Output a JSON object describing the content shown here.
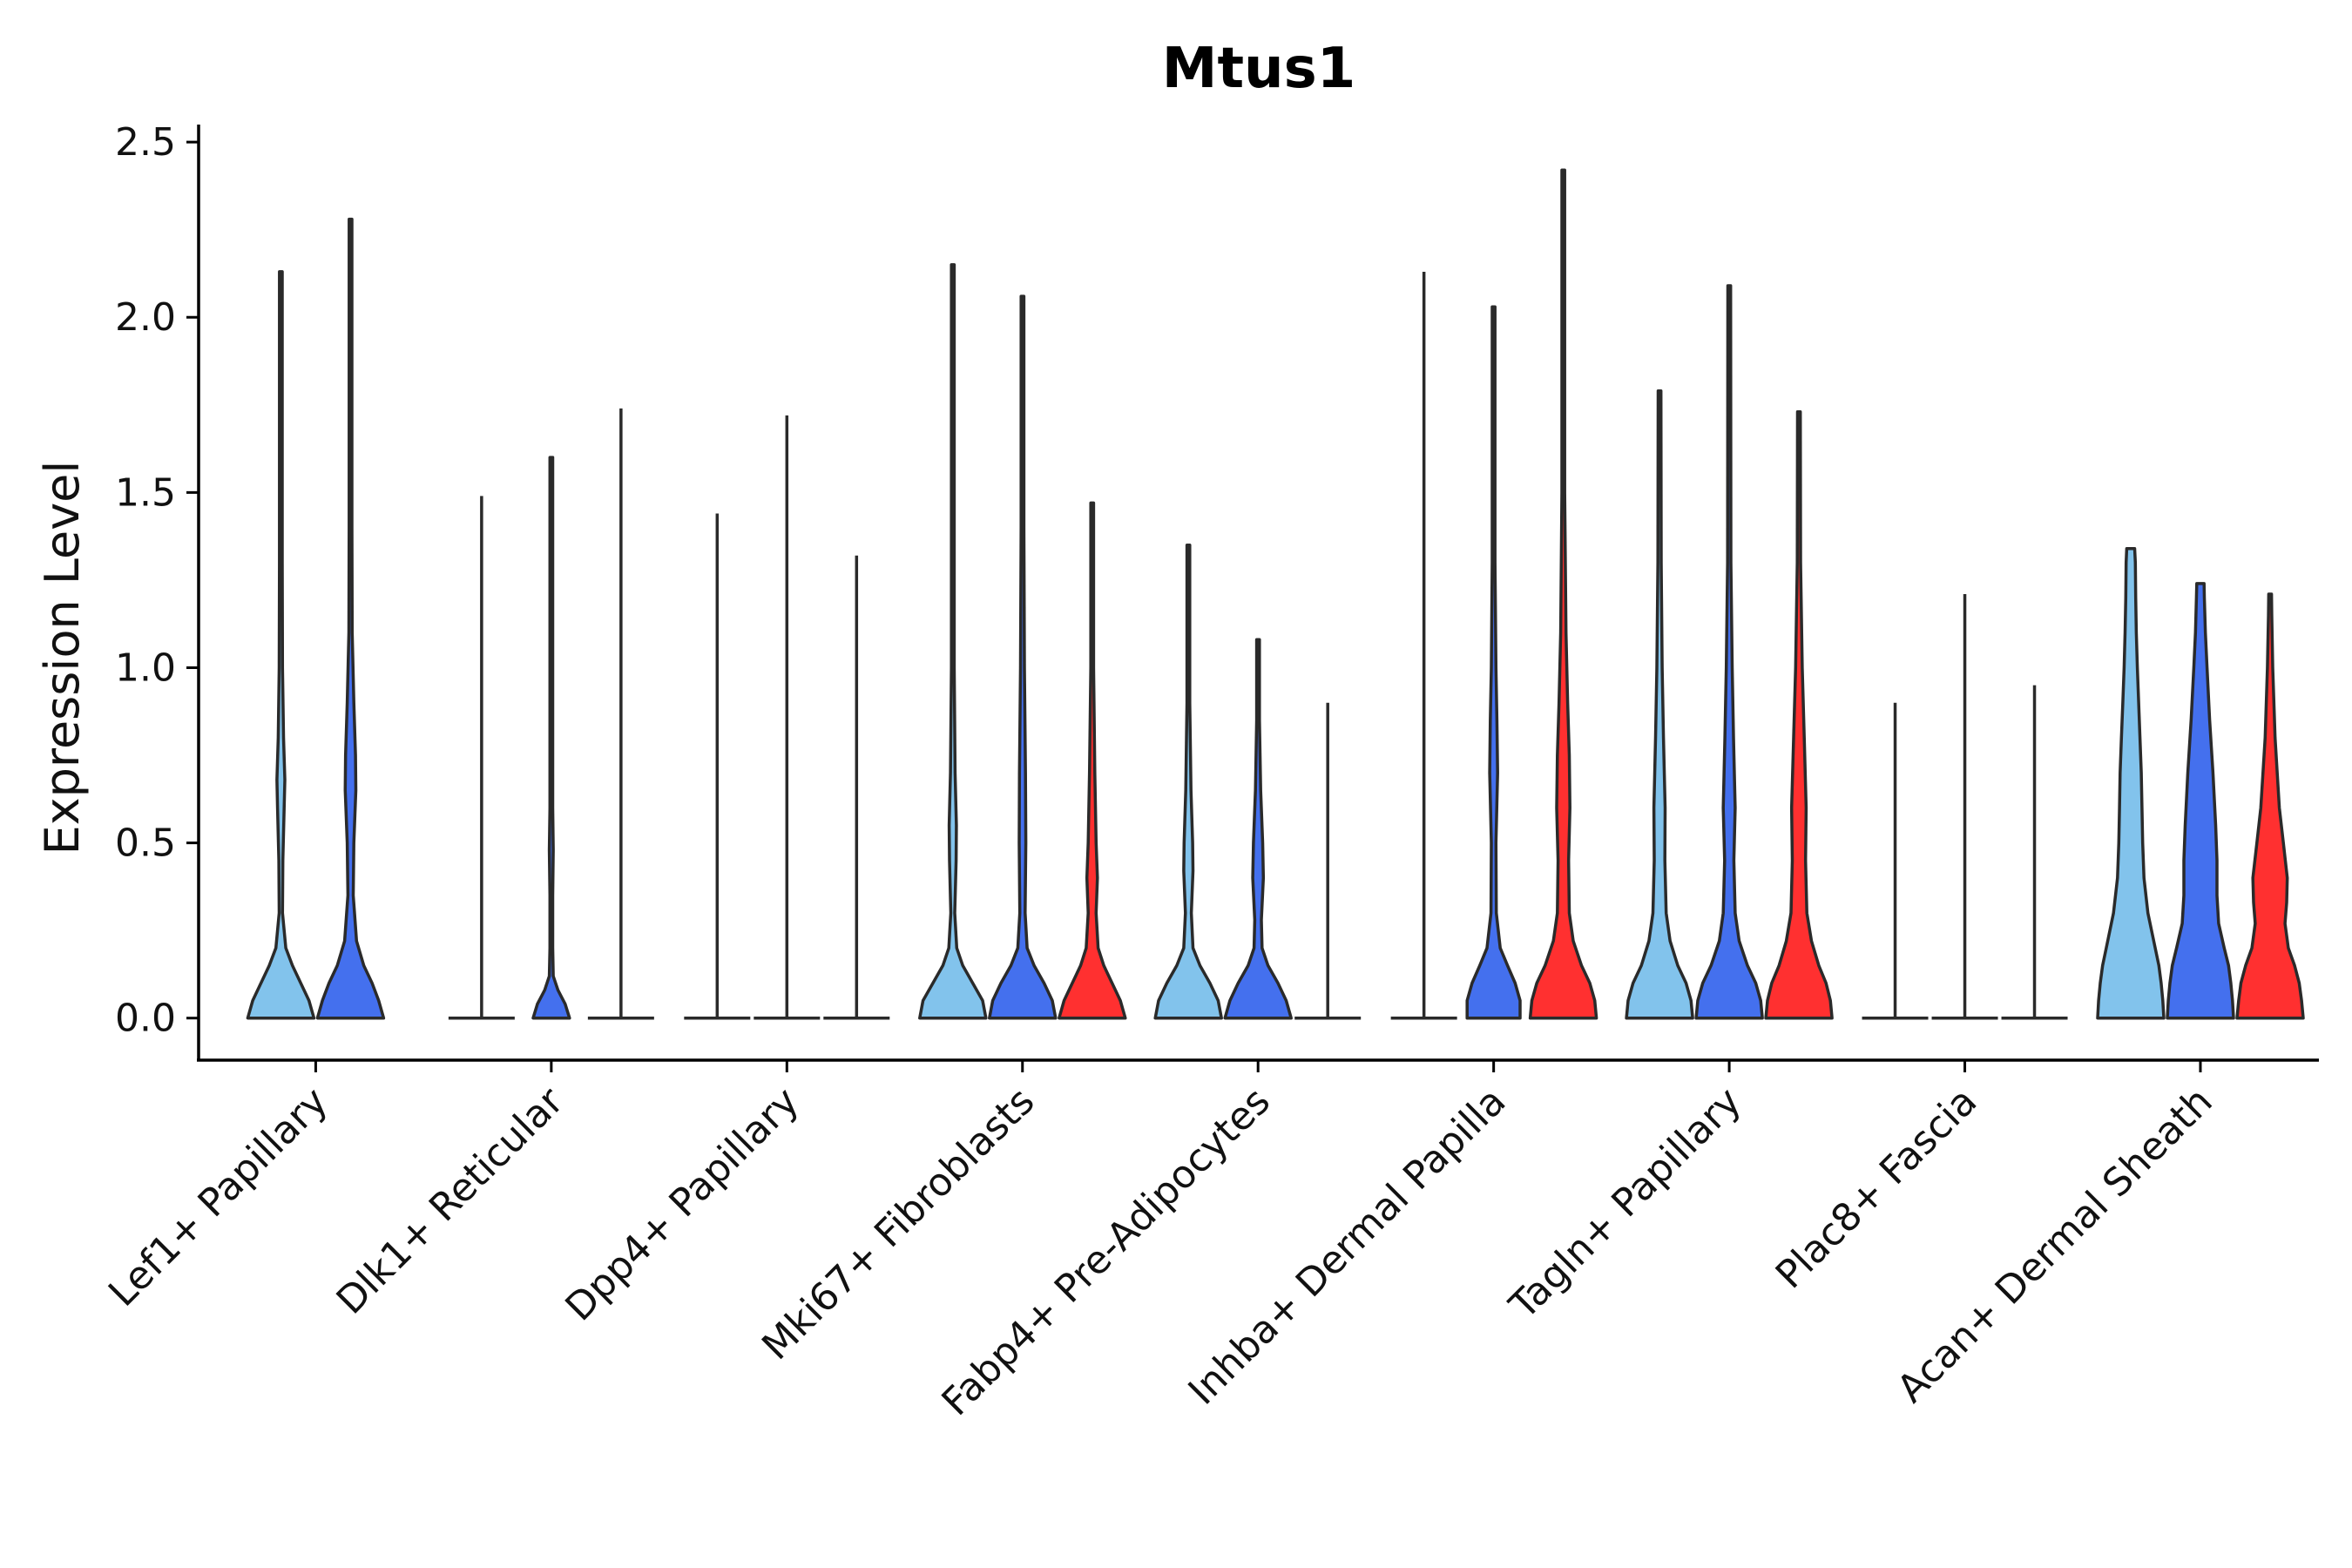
{
  "chart_data": {
    "type": "violin",
    "title": "Mtus1",
    "xlabel": "",
    "ylabel": "Expression Level",
    "ylim": [
      -0.12,
      2.55
    ],
    "yticks": [
      0.0,
      0.5,
      1.0,
      1.5,
      2.0,
      2.5
    ],
    "ytick_labels": [
      "0.0",
      "0.5",
      "1.0",
      "1.5",
      "2.0",
      "2.5"
    ],
    "legend": "none",
    "grid": false,
    "colors": {
      "lightblue": "#82C3EC",
      "blue": "#4470EE",
      "red": "#FF3030"
    },
    "categories": [
      "Lef1+ Papillary",
      "Dlk1+ Reticular",
      "Dpp4+ Papillary",
      "Mki67+ Fibroblasts",
      "Fabp4+ Pre-Adipocytes",
      "Inhba+ Dermal Papilla",
      "Tagln+ Papillary",
      "Plac8+ Fascia",
      "Acan+ Dermal Sheath"
    ],
    "violins": [
      {
        "category": 0,
        "sub": 0,
        "subs": 2,
        "color": "lightblue",
        "max": 2.13,
        "profile": [
          [
            0,
            1
          ],
          [
            0.05,
            0.85
          ],
          [
            0.1,
            0.6
          ],
          [
            0.15,
            0.35
          ],
          [
            0.2,
            0.15
          ],
          [
            0.3,
            0.05
          ],
          [
            0.45,
            0.06
          ],
          [
            0.6,
            0.1
          ],
          [
            0.68,
            0.12
          ],
          [
            0.8,
            0.08
          ],
          [
            1.0,
            0.05
          ],
          [
            1.3,
            0.02
          ],
          [
            1.6,
            0.012
          ],
          [
            2.13,
            0.006
          ]
        ]
      },
      {
        "category": 0,
        "sub": 1,
        "subs": 2,
        "color": "blue",
        "max": 2.28,
        "profile": [
          [
            0,
            1
          ],
          [
            0.05,
            0.85
          ],
          [
            0.1,
            0.65
          ],
          [
            0.15,
            0.4
          ],
          [
            0.22,
            0.18
          ],
          [
            0.35,
            0.08
          ],
          [
            0.5,
            0.1
          ],
          [
            0.65,
            0.16
          ],
          [
            0.75,
            0.15
          ],
          [
            0.9,
            0.1
          ],
          [
            1.1,
            0.05
          ],
          [
            1.4,
            0.02
          ],
          [
            1.8,
            0.01
          ],
          [
            2.28,
            0.006
          ]
        ]
      },
      {
        "category": 1,
        "sub": 0,
        "subs": 3,
        "color": "lightblue",
        "max": 1.49,
        "profile": []
      },
      {
        "category": 1,
        "sub": 1,
        "subs": 3,
        "color": "blue",
        "max": 1.6,
        "profile": [
          [
            0,
            0.55
          ],
          [
            0.04,
            0.42
          ],
          [
            0.08,
            0.2
          ],
          [
            0.12,
            0.06
          ],
          [
            0.2,
            0.02
          ],
          [
            0.35,
            0.04
          ],
          [
            0.48,
            0.06
          ],
          [
            0.6,
            0.03
          ],
          [
            0.8,
            0.015
          ],
          [
            1.1,
            0.01
          ],
          [
            1.6,
            0.005
          ]
        ]
      },
      {
        "category": 1,
        "sub": 2,
        "subs": 3,
        "color": "red",
        "max": 1.74,
        "profile": []
      },
      {
        "category": 2,
        "sub": 0,
        "subs": 3,
        "color": "lightblue",
        "max": 1.44,
        "profile": []
      },
      {
        "category": 2,
        "sub": 1,
        "subs": 3,
        "color": "blue",
        "max": 1.72,
        "profile": []
      },
      {
        "category": 2,
        "sub": 2,
        "subs": 3,
        "color": "red",
        "max": 1.32,
        "profile": []
      },
      {
        "category": 3,
        "sub": 0,
        "subs": 3,
        "color": "lightblue",
        "max": 2.15,
        "profile": [
          [
            0,
            1
          ],
          [
            0.05,
            0.9
          ],
          [
            0.1,
            0.6
          ],
          [
            0.15,
            0.3
          ],
          [
            0.2,
            0.12
          ],
          [
            0.3,
            0.06
          ],
          [
            0.45,
            0.1
          ],
          [
            0.55,
            0.11
          ],
          [
            0.7,
            0.07
          ],
          [
            1.0,
            0.04
          ],
          [
            1.4,
            0.02
          ],
          [
            2.15,
            0.006
          ]
        ]
      },
      {
        "category": 3,
        "sub": 1,
        "subs": 3,
        "color": "blue",
        "max": 2.06,
        "profile": [
          [
            0,
            1
          ],
          [
            0.05,
            0.9
          ],
          [
            0.1,
            0.65
          ],
          [
            0.15,
            0.35
          ],
          [
            0.2,
            0.14
          ],
          [
            0.3,
            0.08
          ],
          [
            0.5,
            0.1
          ],
          [
            0.7,
            0.09
          ],
          [
            1.0,
            0.06
          ],
          [
            1.4,
            0.03
          ],
          [
            2.06,
            0.006
          ]
        ]
      },
      {
        "category": 3,
        "sub": 2,
        "subs": 3,
        "color": "red",
        "max": 1.47,
        "profile": [
          [
            0,
            1
          ],
          [
            0.05,
            0.85
          ],
          [
            0.1,
            0.6
          ],
          [
            0.15,
            0.35
          ],
          [
            0.2,
            0.18
          ],
          [
            0.3,
            0.12
          ],
          [
            0.4,
            0.16
          ],
          [
            0.5,
            0.12
          ],
          [
            0.7,
            0.08
          ],
          [
            1.0,
            0.04
          ],
          [
            1.47,
            0.008
          ]
        ]
      },
      {
        "category": 4,
        "sub": 0,
        "subs": 3,
        "color": "lightblue",
        "max": 1.35,
        "profile": [
          [
            0,
            1
          ],
          [
            0.05,
            0.9
          ],
          [
            0.1,
            0.65
          ],
          [
            0.15,
            0.35
          ],
          [
            0.2,
            0.14
          ],
          [
            0.3,
            0.09
          ],
          [
            0.42,
            0.14
          ],
          [
            0.5,
            0.13
          ],
          [
            0.65,
            0.08
          ],
          [
            0.9,
            0.04
          ],
          [
            1.35,
            0.008
          ]
        ]
      },
      {
        "category": 4,
        "sub": 1,
        "subs": 3,
        "color": "blue",
        "max": 1.08,
        "profile": [
          [
            0,
            1
          ],
          [
            0.05,
            0.85
          ],
          [
            0.1,
            0.6
          ],
          [
            0.15,
            0.3
          ],
          [
            0.2,
            0.12
          ],
          [
            0.28,
            0.1
          ],
          [
            0.4,
            0.16
          ],
          [
            0.5,
            0.14
          ],
          [
            0.65,
            0.08
          ],
          [
            0.85,
            0.04
          ],
          [
            1.08,
            0.01
          ]
        ]
      },
      {
        "category": 4,
        "sub": 2,
        "subs": 3,
        "color": "red",
        "max": 0.9,
        "profile": []
      },
      {
        "category": 5,
        "sub": 0,
        "subs": 3,
        "color": "lightblue",
        "max": 2.13,
        "profile": []
      },
      {
        "category": 5,
        "sub": 1,
        "subs": 3,
        "color": "blue",
        "max": 2.03,
        "profile": [
          [
            0,
            0.8
          ],
          [
            0.05,
            0.8
          ],
          [
            0.1,
            0.65
          ],
          [
            0.15,
            0.42
          ],
          [
            0.2,
            0.2
          ],
          [
            0.3,
            0.08
          ],
          [
            0.5,
            0.07
          ],
          [
            0.7,
            0.12
          ],
          [
            0.85,
            0.1
          ],
          [
            1.0,
            0.07
          ],
          [
            1.3,
            0.04
          ],
          [
            2.03,
            0.006
          ]
        ]
      },
      {
        "category": 5,
        "sub": 2,
        "subs": 3,
        "color": "red",
        "max": 2.42,
        "profile": [
          [
            0,
            1
          ],
          [
            0.05,
            0.95
          ],
          [
            0.1,
            0.8
          ],
          [
            0.15,
            0.55
          ],
          [
            0.22,
            0.3
          ],
          [
            0.3,
            0.18
          ],
          [
            0.45,
            0.16
          ],
          [
            0.6,
            0.2
          ],
          [
            0.75,
            0.18
          ],
          [
            0.9,
            0.13
          ],
          [
            1.1,
            0.08
          ],
          [
            1.5,
            0.04
          ],
          [
            2.42,
            0.006
          ]
        ]
      },
      {
        "category": 6,
        "sub": 0,
        "subs": 3,
        "color": "lightblue",
        "max": 1.79,
        "profile": [
          [
            0,
            1
          ],
          [
            0.05,
            0.95
          ],
          [
            0.1,
            0.8
          ],
          [
            0.15,
            0.55
          ],
          [
            0.22,
            0.32
          ],
          [
            0.3,
            0.2
          ],
          [
            0.45,
            0.16
          ],
          [
            0.6,
            0.17
          ],
          [
            0.8,
            0.12
          ],
          [
            1.0,
            0.08
          ],
          [
            1.3,
            0.05
          ],
          [
            1.79,
            0.008
          ]
        ]
      },
      {
        "category": 6,
        "sub": 1,
        "subs": 3,
        "color": "blue",
        "max": 2.09,
        "profile": [
          [
            0,
            1
          ],
          [
            0.05,
            0.95
          ],
          [
            0.1,
            0.8
          ],
          [
            0.15,
            0.55
          ],
          [
            0.22,
            0.3
          ],
          [
            0.3,
            0.18
          ],
          [
            0.45,
            0.14
          ],
          [
            0.6,
            0.18
          ],
          [
            0.8,
            0.13
          ],
          [
            1.0,
            0.09
          ],
          [
            1.3,
            0.05
          ],
          [
            2.09,
            0.006
          ]
        ]
      },
      {
        "category": 6,
        "sub": 2,
        "subs": 3,
        "color": "red",
        "max": 1.73,
        "profile": [
          [
            0,
            1
          ],
          [
            0.05,
            0.95
          ],
          [
            0.1,
            0.82
          ],
          [
            0.15,
            0.6
          ],
          [
            0.22,
            0.38
          ],
          [
            0.3,
            0.24
          ],
          [
            0.45,
            0.2
          ],
          [
            0.6,
            0.22
          ],
          [
            0.8,
            0.16
          ],
          [
            1.0,
            0.1
          ],
          [
            1.3,
            0.05
          ],
          [
            1.73,
            0.008
          ]
        ]
      },
      {
        "category": 7,
        "sub": 0,
        "subs": 3,
        "color": "lightblue",
        "max": 0.9,
        "profile": []
      },
      {
        "category": 7,
        "sub": 1,
        "subs": 3,
        "color": "blue",
        "max": 1.21,
        "profile": []
      },
      {
        "category": 7,
        "sub": 2,
        "subs": 3,
        "color": "red",
        "max": 0.95,
        "profile": []
      },
      {
        "category": 8,
        "sub": 0,
        "subs": 3,
        "color": "lightblue",
        "max": 1.34,
        "profile": [
          [
            0,
            1
          ],
          [
            0.05,
            0.97
          ],
          [
            0.1,
            0.92
          ],
          [
            0.15,
            0.85
          ],
          [
            0.2,
            0.74
          ],
          [
            0.3,
            0.52
          ],
          [
            0.4,
            0.4
          ],
          [
            0.5,
            0.36
          ],
          [
            0.6,
            0.34
          ],
          [
            0.7,
            0.32
          ],
          [
            0.8,
            0.28
          ],
          [
            0.9,
            0.24
          ],
          [
            1.0,
            0.2
          ],
          [
            1.1,
            0.17
          ],
          [
            1.2,
            0.15
          ],
          [
            1.3,
            0.14
          ],
          [
            1.34,
            0.12
          ]
        ]
      },
      {
        "category": 8,
        "sub": 1,
        "subs": 3,
        "color": "blue",
        "max": 1.24,
        "profile": [
          [
            0,
            1
          ],
          [
            0.05,
            0.97
          ],
          [
            0.1,
            0.92
          ],
          [
            0.15,
            0.85
          ],
          [
            0.2,
            0.72
          ],
          [
            0.27,
            0.55
          ],
          [
            0.35,
            0.5
          ],
          [
            0.45,
            0.5
          ],
          [
            0.55,
            0.46
          ],
          [
            0.7,
            0.38
          ],
          [
            0.85,
            0.28
          ],
          [
            1.0,
            0.2
          ],
          [
            1.1,
            0.15
          ],
          [
            1.2,
            0.12
          ],
          [
            1.24,
            0.11
          ]
        ]
      },
      {
        "category": 8,
        "sub": 2,
        "subs": 3,
        "color": "red",
        "max": 1.21,
        "profile": [
          [
            0,
            1
          ],
          [
            0.05,
            0.95
          ],
          [
            0.1,
            0.88
          ],
          [
            0.15,
            0.74
          ],
          [
            0.2,
            0.55
          ],
          [
            0.27,
            0.45
          ],
          [
            0.33,
            0.5
          ],
          [
            0.4,
            0.52
          ],
          [
            0.5,
            0.4
          ],
          [
            0.6,
            0.28
          ],
          [
            0.8,
            0.15
          ],
          [
            1.0,
            0.08
          ],
          [
            1.15,
            0.05
          ],
          [
            1.21,
            0.04
          ]
        ]
      }
    ]
  }
}
